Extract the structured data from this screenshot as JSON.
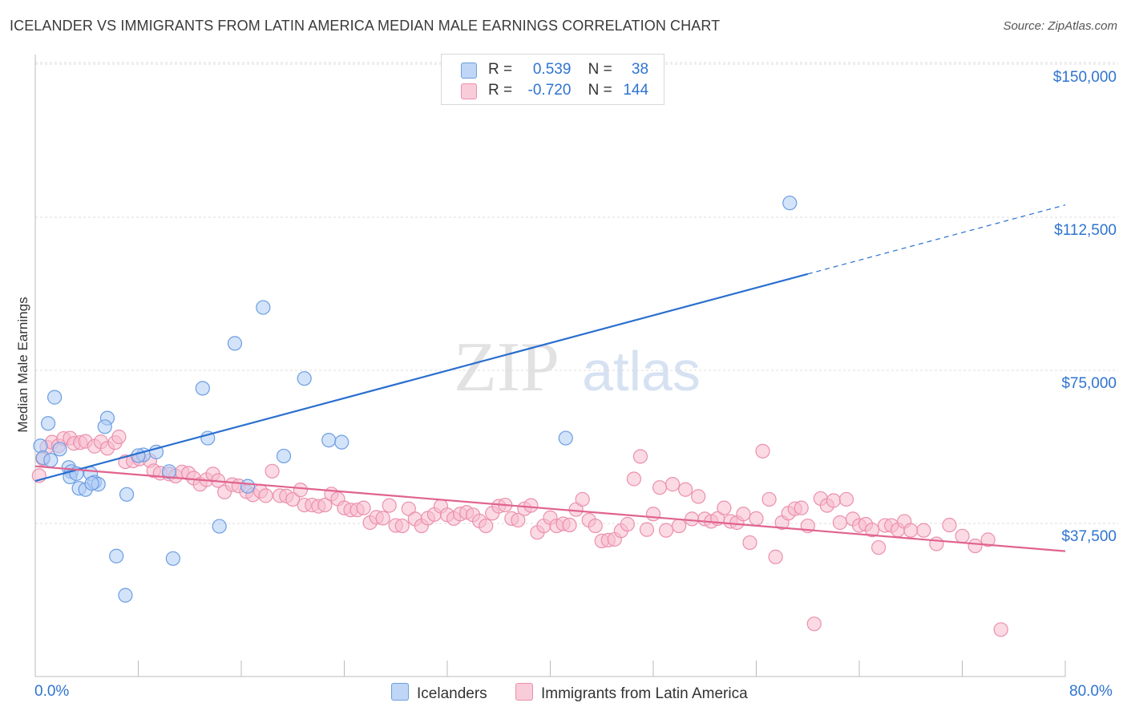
{
  "title": "ICELANDER VS IMMIGRANTS FROM LATIN AMERICA MEDIAN MALE EARNINGS CORRELATION CHART",
  "source": "Source: ZipAtlas.com",
  "watermark": {
    "zip": "ZIP",
    "atlas": "atlas"
  },
  "legend_box": {
    "rows": [
      {
        "r_label": "R =",
        "r_value": "0.539",
        "n_label": "N =",
        "n_value": "38"
      },
      {
        "r_label": "R =",
        "r_value": "-0.720",
        "n_label": "N =",
        "n_value": "144"
      }
    ]
  },
  "bottom_legend": [
    "Icelanders",
    "Immigrants from Latin America"
  ],
  "colors": {
    "blue_fill": "#aeccf5",
    "blue_stroke": "#6c9ee0",
    "blue_line": "#2a6fcf",
    "pink_fill": "#f7bccd",
    "pink_stroke": "#eb90ad",
    "pink_line": "#e0638f",
    "accent_text": "#2f74d0",
    "grid": "#dcdcdc"
  },
  "chart_data": {
    "type": "scatter",
    "title": "ICELANDER VS IMMIGRANTS FROM LATIN AMERICA MEDIAN MALE EARNINGS CORRELATION CHART",
    "xlabel": "",
    "ylabel": "Median Male Earnings",
    "xlim": [
      0,
      80
    ],
    "ylim": [
      0,
      152000
    ],
    "x_tick_labels": [
      "0.0%",
      "80.0%"
    ],
    "y_ticks": [
      37500,
      75000,
      112500,
      150000
    ],
    "y_tick_labels": [
      "$37,500",
      "$75,000",
      "$112,500",
      "$150,000"
    ],
    "grid": "horizontal dashed",
    "legend_position": "top-center",
    "series": [
      {
        "name": "Icelanders",
        "color": "#aeccf5",
        "points": [
          [
            0.4,
            56500
          ],
          [
            0.6,
            53600
          ],
          [
            1.0,
            62000
          ],
          [
            1.5,
            68400
          ],
          [
            1.9,
            55700
          ],
          [
            2.6,
            51200
          ],
          [
            2.8,
            50200
          ],
          [
            2.7,
            48900
          ],
          [
            3.4,
            46100
          ],
          [
            3.9,
            45800
          ],
          [
            4.3,
            49700
          ],
          [
            4.6,
            47600
          ],
          [
            4.9,
            47100
          ],
          [
            5.6,
            63300
          ],
          [
            5.4,
            61200
          ],
          [
            6.3,
            29500
          ],
          [
            7.1,
            44600
          ],
          [
            7.0,
            19900
          ],
          [
            8.4,
            54300
          ],
          [
            9.4,
            55000
          ],
          [
            10.4,
            50200
          ],
          [
            10.7,
            28900
          ],
          [
            13.0,
            70600
          ],
          [
            13.4,
            58400
          ],
          [
            14.3,
            36800
          ],
          [
            15.5,
            81600
          ],
          [
            16.5,
            46600
          ],
          [
            17.7,
            90400
          ],
          [
            19.3,
            54000
          ],
          [
            20.9,
            73000
          ],
          [
            22.8,
            57900
          ],
          [
            23.8,
            57400
          ],
          [
            41.2,
            58400
          ],
          [
            58.6,
            116000
          ],
          [
            1.2,
            53000
          ],
          [
            3.2,
            49700
          ],
          [
            8.0,
            54100
          ],
          [
            4.4,
            47300
          ]
        ],
        "trend": {
          "x": [
            0,
            80
          ],
          "y": [
            47900,
            115500
          ],
          "solid_until_x": 60
        }
      },
      {
        "name": "Immigrants from Latin America",
        "color": "#f7bccd",
        "points": [
          [
            0.3,
            49200
          ],
          [
            0.6,
            53300
          ],
          [
            0.9,
            56200
          ],
          [
            1.3,
            57400
          ],
          [
            1.8,
            56500
          ],
          [
            2.2,
            58300
          ],
          [
            2.7,
            58400
          ],
          [
            3.0,
            57100
          ],
          [
            3.5,
            57300
          ],
          [
            3.9,
            57600
          ],
          [
            4.6,
            56400
          ],
          [
            5.1,
            57500
          ],
          [
            5.6,
            55900
          ],
          [
            6.2,
            57300
          ],
          [
            6.5,
            58700
          ],
          [
            7.0,
            52600
          ],
          [
            7.6,
            52800
          ],
          [
            8.1,
            53300
          ],
          [
            8.9,
            52900
          ],
          [
            9.2,
            50400
          ],
          [
            9.7,
            49800
          ],
          [
            10.4,
            49600
          ],
          [
            10.9,
            49100
          ],
          [
            11.4,
            50100
          ],
          [
            11.9,
            49800
          ],
          [
            12.3,
            48600
          ],
          [
            12.8,
            47100
          ],
          [
            13.3,
            48200
          ],
          [
            13.8,
            49600
          ],
          [
            14.2,
            48000
          ],
          [
            14.7,
            45200
          ],
          [
            15.3,
            47000
          ],
          [
            15.8,
            46700
          ],
          [
            16.4,
            45300
          ],
          [
            16.9,
            44500
          ],
          [
            17.5,
            45400
          ],
          [
            17.9,
            44300
          ],
          [
            18.4,
            50300
          ],
          [
            19.0,
            44300
          ],
          [
            19.5,
            44200
          ],
          [
            20.0,
            43400
          ],
          [
            20.6,
            45700
          ],
          [
            20.9,
            42000
          ],
          [
            21.5,
            42000
          ],
          [
            22.0,
            41700
          ],
          [
            22.5,
            42000
          ],
          [
            23.0,
            44700
          ],
          [
            23.5,
            43500
          ],
          [
            24.0,
            41300
          ],
          [
            24.5,
            40800
          ],
          [
            25.0,
            40800
          ],
          [
            25.5,
            41300
          ],
          [
            26.0,
            37700
          ],
          [
            26.5,
            39000
          ],
          [
            27.0,
            38800
          ],
          [
            27.5,
            41900
          ],
          [
            28.0,
            37000
          ],
          [
            28.5,
            36900
          ],
          [
            29.0,
            41100
          ],
          [
            29.5,
            38600
          ],
          [
            30.0,
            36900
          ],
          [
            30.5,
            38800
          ],
          [
            31.0,
            39700
          ],
          [
            31.5,
            41700
          ],
          [
            32.0,
            39600
          ],
          [
            32.5,
            38700
          ],
          [
            33.0,
            39800
          ],
          [
            33.5,
            40200
          ],
          [
            34.0,
            39600
          ],
          [
            34.5,
            38100
          ],
          [
            35.0,
            36900
          ],
          [
            35.5,
            40000
          ],
          [
            36.0,
            41700
          ],
          [
            36.5,
            42000
          ],
          [
            37.0,
            38700
          ],
          [
            37.5,
            38300
          ],
          [
            38.0,
            41100
          ],
          [
            38.5,
            41900
          ],
          [
            39.0,
            35300
          ],
          [
            39.5,
            36900
          ],
          [
            40.0,
            38900
          ],
          [
            40.5,
            36900
          ],
          [
            41.0,
            37400
          ],
          [
            41.5,
            37100
          ],
          [
            42.0,
            40900
          ],
          [
            42.5,
            43400
          ],
          [
            43.0,
            38300
          ],
          [
            43.5,
            36900
          ],
          [
            44.0,
            33200
          ],
          [
            44.5,
            33400
          ],
          [
            45.0,
            33600
          ],
          [
            45.5,
            35700
          ],
          [
            46.0,
            37300
          ],
          [
            46.5,
            48400
          ],
          [
            47.0,
            53900
          ],
          [
            47.5,
            36000
          ],
          [
            48.0,
            39800
          ],
          [
            48.5,
            46300
          ],
          [
            49.0,
            35800
          ],
          [
            49.5,
            47100
          ],
          [
            50.0,
            36900
          ],
          [
            50.5,
            45800
          ],
          [
            51.0,
            38600
          ],
          [
            51.5,
            44100
          ],
          [
            52.0,
            38600
          ],
          [
            52.5,
            38000
          ],
          [
            53.0,
            38700
          ],
          [
            53.5,
            41300
          ],
          [
            54.0,
            38000
          ],
          [
            54.5,
            37700
          ],
          [
            55.0,
            39800
          ],
          [
            55.5,
            32800
          ],
          [
            56.0,
            38700
          ],
          [
            56.5,
            55200
          ],
          [
            57.0,
            43400
          ],
          [
            57.5,
            29300
          ],
          [
            58.0,
            37700
          ],
          [
            58.5,
            40000
          ],
          [
            59.0,
            41100
          ],
          [
            59.5,
            41300
          ],
          [
            60.0,
            36900
          ],
          [
            60.5,
            12900
          ],
          [
            61.0,
            43600
          ],
          [
            61.5,
            41900
          ],
          [
            62.0,
            43100
          ],
          [
            62.5,
            37700
          ],
          [
            63.0,
            43400
          ],
          [
            63.5,
            38600
          ],
          [
            64.0,
            37000
          ],
          [
            64.5,
            37300
          ],
          [
            65.0,
            35900
          ],
          [
            65.5,
            31600
          ],
          [
            66.0,
            37000
          ],
          [
            66.5,
            37000
          ],
          [
            67.0,
            35900
          ],
          [
            67.5,
            38000
          ],
          [
            68.0,
            35800
          ],
          [
            69.0,
            35800
          ],
          [
            70.0,
            32500
          ],
          [
            71.0,
            37100
          ],
          [
            72.0,
            34400
          ],
          [
            73.0,
            32000
          ],
          [
            74.0,
            33500
          ],
          [
            75.0,
            11500
          ]
        ],
        "trend": {
          "x": [
            0,
            80
          ],
          "y": [
            51500,
            30700
          ]
        }
      }
    ]
  }
}
